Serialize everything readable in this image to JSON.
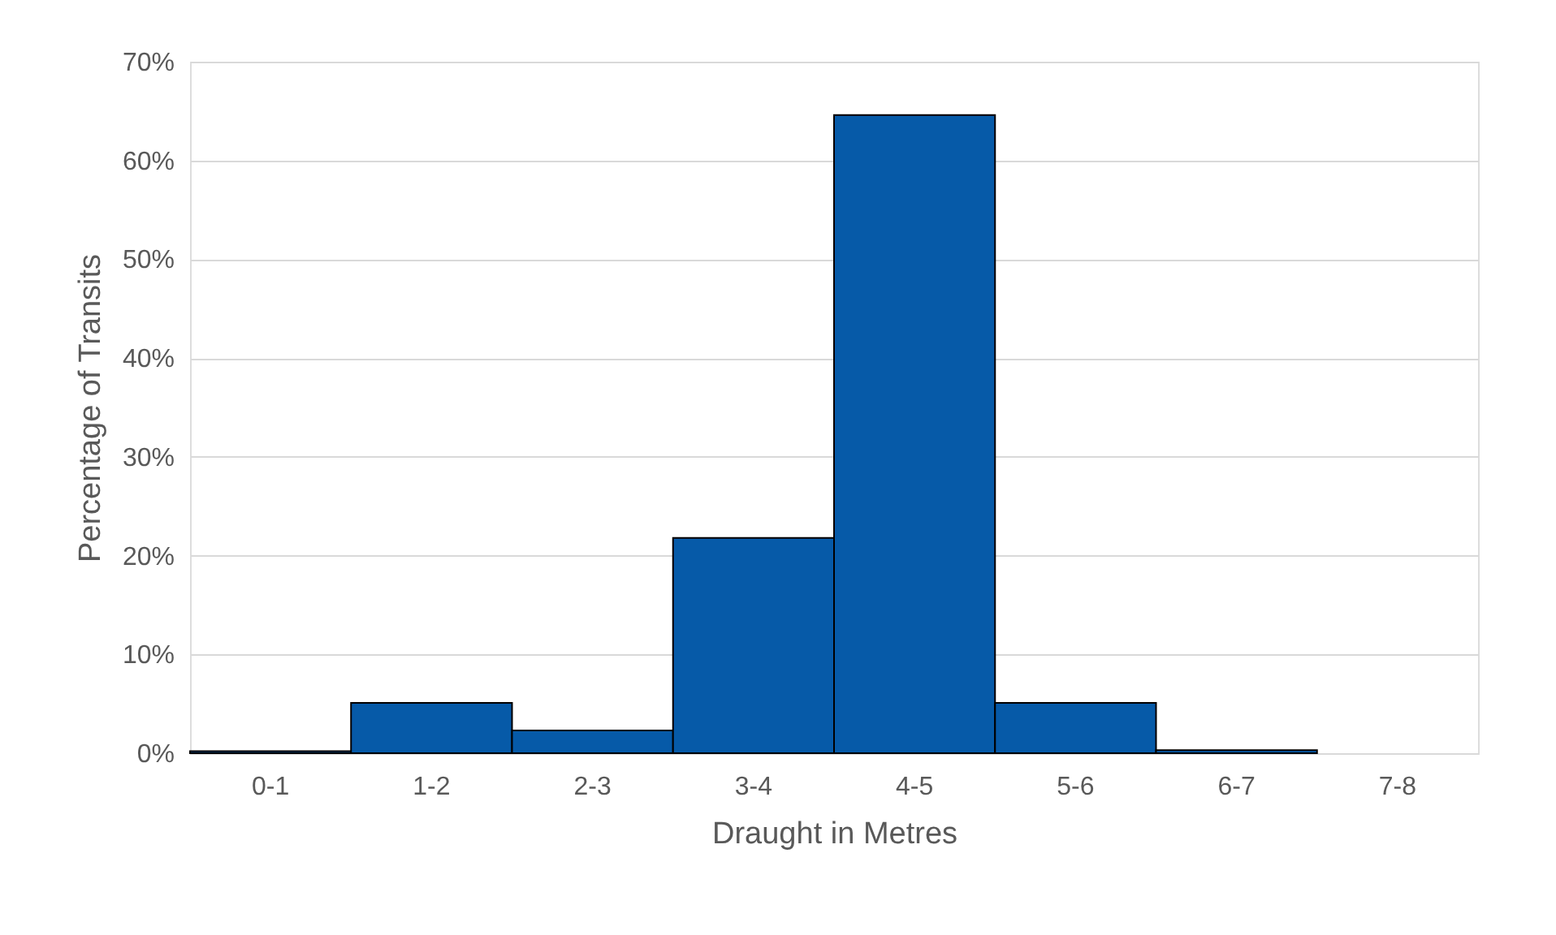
{
  "chart_data": {
    "type": "bar",
    "xlabel": "Draught in Metres",
    "ylabel": "Percentage of Transits",
    "categories": [
      "0-1",
      "1-2",
      "2-3",
      "3-4",
      "4-5",
      "5-6",
      "6-7",
      "7-8"
    ],
    "values": [
      0.2,
      5.1,
      2.3,
      21.8,
      64.6,
      5.1,
      0.3,
      null
    ],
    "color": "#065aa8",
    "ylim": [
      0,
      70
    ],
    "yticks": [
      {
        "value": 0,
        "label": "0%"
      },
      {
        "value": 10,
        "label": "10%"
      },
      {
        "value": 20,
        "label": "20%"
      },
      {
        "value": 30,
        "label": "30%"
      },
      {
        "value": 40,
        "label": "40%"
      },
      {
        "value": 50,
        "label": "50%"
      },
      {
        "value": 60,
        "label": "60%"
      },
      {
        "value": 70,
        "label": "70%"
      }
    ],
    "grid": "y"
  }
}
